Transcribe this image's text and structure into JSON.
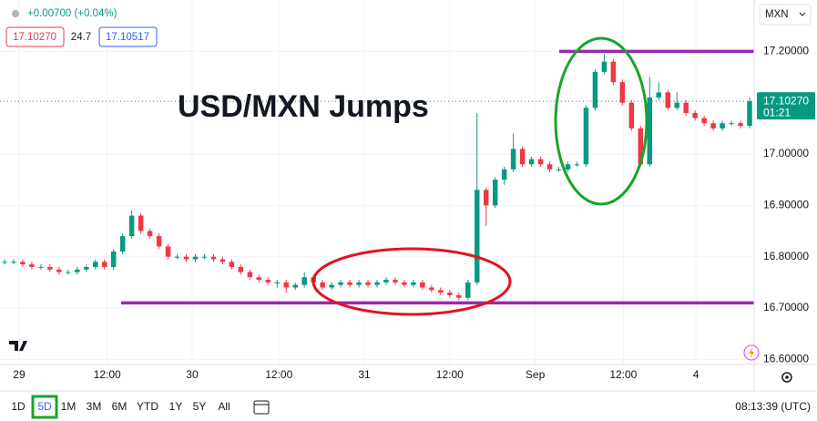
{
  "chart_data": {
    "type": "candlestick",
    "title": "USD/MXN Jumps",
    "up_color": "#089981",
    "down_color": "#f23645",
    "level_color": "#9c27b0",
    "grid": true,
    "x": [
      0,
      1,
      2,
      3,
      4,
      5,
      6,
      7,
      8,
      9,
      10,
      11,
      12,
      13,
      14,
      15,
      16,
      17,
      18,
      19,
      20,
      21,
      22,
      23,
      24,
      25,
      26,
      27,
      28,
      29,
      30,
      31,
      32,
      33,
      34,
      35,
      36,
      37,
      38,
      39,
      40,
      41,
      42,
      43,
      44,
      45,
      46,
      47,
      48,
      49,
      50,
      51,
      52,
      53,
      54,
      55,
      56,
      57,
      58,
      59,
      60,
      61,
      62,
      63,
      64,
      65,
      66,
      67,
      68,
      69,
      70,
      71,
      72,
      73,
      74,
      75,
      76,
      77,
      78,
      79,
      80,
      81,
      82
    ],
    "open": [
      16.79,
      16.79,
      16.79,
      16.785,
      16.78,
      16.78,
      16.775,
      16.77,
      16.77,
      16.775,
      16.78,
      16.79,
      16.78,
      16.81,
      16.84,
      16.88,
      16.85,
      16.84,
      16.82,
      16.8,
      16.8,
      16.795,
      16.8,
      16.8,
      16.795,
      16.79,
      16.78,
      16.77,
      16.76,
      16.755,
      16.75,
      16.75,
      16.74,
      16.745,
      16.76,
      16.75,
      16.74,
      16.745,
      16.75,
      16.745,
      16.75,
      16.745,
      16.75,
      16.755,
      16.75,
      16.745,
      16.75,
      16.74,
      16.735,
      16.73,
      16.725,
      16.72,
      16.75,
      16.93,
      16.9,
      16.95,
      16.97,
      17.01,
      16.98,
      16.99,
      16.98,
      16.97,
      16.97,
      16.98,
      16.98,
      17.09,
      17.16,
      17.18,
      17.14,
      17.1,
      17.05,
      16.98,
      17.11,
      17.12,
      17.09,
      17.1,
      17.08,
      17.07,
      17.06,
      17.05,
      17.06,
      17.06,
      17.055
    ],
    "high": [
      16.795,
      16.795,
      16.795,
      16.79,
      16.785,
      16.785,
      16.78,
      16.775,
      16.78,
      16.785,
      16.795,
      16.795,
      16.815,
      16.845,
      16.89,
      16.885,
      16.855,
      16.845,
      16.825,
      16.805,
      16.805,
      16.805,
      16.805,
      16.805,
      16.8,
      16.795,
      16.785,
      16.775,
      16.765,
      16.76,
      16.755,
      16.755,
      16.75,
      16.77,
      16.765,
      16.755,
      16.75,
      16.755,
      16.755,
      16.755,
      16.755,
      16.755,
      16.76,
      16.76,
      16.755,
      16.755,
      16.755,
      16.745,
      16.74,
      16.735,
      16.73,
      16.755,
      17.08,
      16.935,
      16.955,
      16.975,
      17.04,
      17.015,
      16.995,
      16.995,
      16.985,
      16.975,
      16.985,
      16.985,
      17.095,
      17.165,
      17.195,
      17.185,
      17.145,
      17.105,
      17.055,
      17.15,
      17.14,
      17.125,
      17.12,
      17.105,
      17.085,
      17.075,
      17.065,
      17.065,
      17.065,
      17.065,
      17.11
    ],
    "low": [
      16.785,
      16.785,
      16.78,
      16.775,
      16.775,
      16.77,
      16.765,
      16.765,
      16.765,
      16.77,
      16.775,
      16.775,
      16.775,
      16.805,
      16.835,
      16.845,
      16.835,
      16.815,
      16.795,
      16.795,
      16.79,
      16.79,
      16.795,
      16.79,
      16.785,
      16.775,
      16.765,
      16.755,
      16.75,
      16.745,
      16.74,
      16.73,
      16.735,
      16.74,
      16.745,
      16.735,
      16.735,
      16.74,
      16.74,
      16.74,
      16.74,
      16.74,
      16.745,
      16.745,
      16.74,
      16.74,
      16.735,
      16.73,
      16.725,
      16.72,
      16.715,
      16.715,
      16.745,
      16.86,
      16.895,
      16.94,
      16.965,
      16.975,
      16.975,
      16.975,
      16.965,
      16.965,
      16.965,
      16.975,
      16.975,
      17.085,
      17.155,
      17.135,
      17.095,
      17.045,
      16.975,
      16.975,
      17.105,
      17.085,
      17.085,
      17.075,
      17.065,
      17.055,
      17.045,
      17.045,
      17.055,
      17.05,
      17.05
    ],
    "close": [
      16.79,
      16.79,
      16.785,
      16.78,
      16.78,
      16.775,
      16.77,
      16.77,
      16.775,
      16.78,
      16.79,
      16.78,
      16.81,
      16.84,
      16.88,
      16.85,
      16.84,
      16.82,
      16.8,
      16.8,
      16.795,
      16.8,
      16.8,
      16.795,
      16.79,
      16.78,
      16.77,
      16.76,
      16.755,
      16.75,
      16.75,
      16.74,
      16.745,
      16.76,
      16.75,
      16.74,
      16.745,
      16.75,
      16.745,
      16.75,
      16.745,
      16.75,
      16.755,
      16.75,
      16.745,
      16.75,
      16.74,
      16.735,
      16.73,
      16.725,
      16.72,
      16.75,
      16.93,
      16.9,
      16.95,
      16.97,
      17.01,
      16.98,
      16.99,
      16.98,
      16.97,
      16.97,
      16.98,
      16.98,
      17.09,
      17.16,
      17.18,
      17.14,
      17.1,
      17.05,
      16.98,
      17.11,
      17.12,
      17.09,
      17.1,
      17.08,
      17.07,
      17.06,
      17.05,
      17.06,
      17.06,
      17.055,
      17.1027
    ],
    "xlim": [
      -0.5,
      82.5
    ],
    "ylim": [
      16.59,
      17.3
    ],
    "xticks": [
      {
        "value": 1.6,
        "label": "29"
      },
      {
        "value": 11.3,
        "label": "12:00"
      },
      {
        "value": 20.65,
        "label": "30"
      },
      {
        "value": 30.2,
        "label": "12:00"
      },
      {
        "value": 39.6,
        "label": "31"
      },
      {
        "value": 49,
        "label": "12:00"
      },
      {
        "value": 58.4,
        "label": "Sep"
      },
      {
        "value": 68.1,
        "label": "12:00"
      },
      {
        "value": 76.1,
        "label": "4"
      }
    ],
    "yticks": [
      {
        "value": 16.6,
        "label": "16.60000"
      },
      {
        "value": 16.7,
        "label": "16.70000"
      },
      {
        "value": 16.8,
        "label": "16.80000"
      },
      {
        "value": 16.9,
        "label": "16.90000"
      },
      {
        "value": 17.0,
        "label": "17.00000"
      },
      {
        "value": 17.2,
        "label": "17.20000"
      }
    ],
    "levels": [
      17.2,
      16.71
    ],
    "last": {
      "value": 17.1027,
      "label": "17.10270",
      "countdown": "01:21"
    }
  },
  "header": {
    "change": "+0.00700 (+0.04%)",
    "bid": "17.10270",
    "spread": "24.7",
    "ask": "17.10517",
    "symbol": "MXN"
  },
  "toolbar": {
    "ranges": [
      "1D",
      "5D",
      "1M",
      "3M",
      "6M",
      "YTD",
      "1Y",
      "5Y",
      "All"
    ],
    "clock": "08:13:39 (UTC)"
  }
}
